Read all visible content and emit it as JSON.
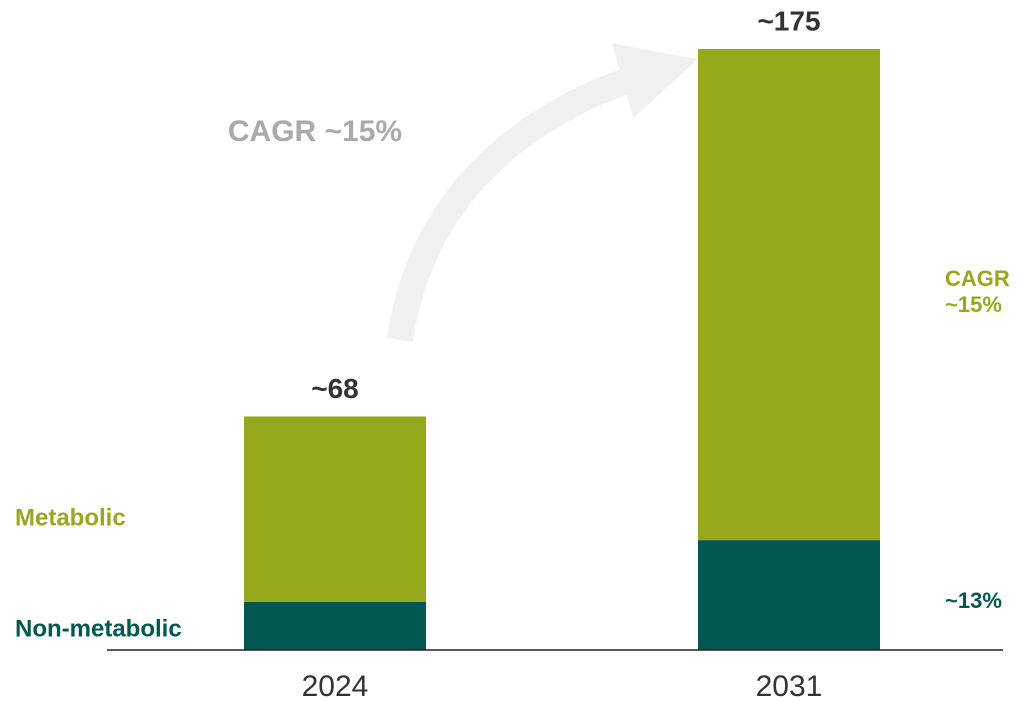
{
  "chart_data": {
    "type": "stacked_bar",
    "categories": [
      "2024",
      "2031"
    ],
    "series": [
      {
        "name": "Non-metabolic",
        "color": "#005850",
        "values": [
          14,
          32
        ],
        "cagr_label": "~13%"
      },
      {
        "name": "Metabolic",
        "color": "#97a81c",
        "values": [
          54,
          143
        ],
        "cagr_label": "~15%"
      }
    ],
    "totals": [
      68,
      175
    ],
    "total_labels": [
      "~68",
      "~175"
    ],
    "cagr_heading": "CAGR",
    "total_cagr": "CAGR ~15%",
    "ylim": [
      0,
      175
    ]
  }
}
